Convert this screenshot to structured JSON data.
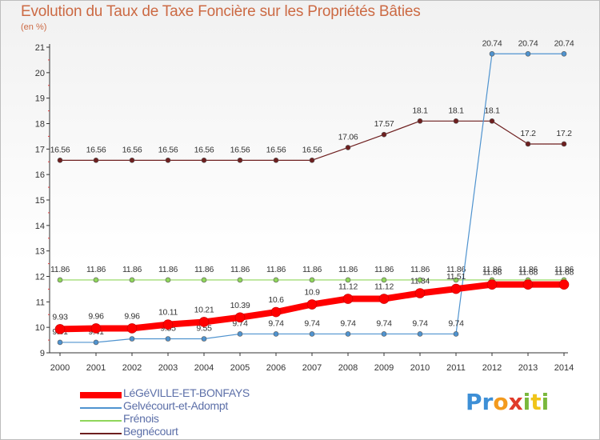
{
  "header": {
    "title": "Evolution du Taux de Taxe Foncière sur les Propriétés Bâties",
    "unit": "(en %)"
  },
  "brand": {
    "letters": [
      "P",
      "r",
      "o",
      "x",
      "i",
      "t",
      "i"
    ],
    "colors": [
      "#3d8fd6",
      "#3d8fd6",
      "#f39a1e",
      "#e03a2a",
      "#7ab83c",
      "#f0c419",
      "#7ab83c"
    ]
  },
  "chart_data": {
    "type": "line",
    "title": "Evolution du Taux de Taxe Foncière sur les Propriétés Bâties",
    "ylabel": "(en %)",
    "xlabel": "",
    "ylim": [
      9,
      21
    ],
    "yticks": [
      "9",
      "10",
      "11",
      "12",
      "13",
      "14",
      "15",
      "16",
      "17",
      "18",
      "19",
      "20",
      "21"
    ],
    "categories": [
      "2000",
      "2001",
      "2002",
      "2003",
      "2004",
      "2005",
      "2006",
      "2007",
      "2008",
      "2009",
      "2010",
      "2011",
      "2012",
      "2013",
      "2014"
    ],
    "series": [
      {
        "name": "Begnécourt",
        "color": "#6e1f1f",
        "values": [
          16.56,
          16.56,
          16.56,
          16.56,
          16.56,
          16.56,
          16.56,
          16.56,
          17.06,
          17.57,
          18.1,
          18.1,
          18.1,
          17.2,
          17.2
        ],
        "labels": [
          "16.56",
          "16.56",
          "16.56",
          "16.56",
          "16.56",
          "16.56",
          "16.56",
          "16.56",
          "17.06",
          "17.57",
          "18.1",
          "18.1",
          "18.1",
          "17.2",
          "17.2"
        ]
      },
      {
        "name": "Frénois",
        "color": "#8fd65a",
        "values": [
          11.86,
          11.86,
          11.86,
          11.86,
          11.86,
          11.86,
          11.86,
          11.86,
          11.86,
          11.86,
          11.86,
          11.86,
          11.86,
          11.86,
          11.86
        ],
        "labels": [
          "11.86",
          "11.86",
          "11.86",
          "11.86",
          "11.86",
          "11.86",
          "11.86",
          "11.86",
          "11.86",
          "11.86",
          "11.86",
          "11.86",
          "11.86",
          "11.86",
          "11.86"
        ]
      },
      {
        "name": "Gelvécourt-et-Adompt",
        "color": "#4f93cf",
        "values": [
          9.41,
          9.41,
          9.55,
          9.55,
          9.55,
          9.74,
          9.74,
          9.74,
          9.74,
          9.74,
          9.74,
          9.74,
          20.74,
          20.74,
          20.74
        ],
        "labels": [
          "9.41",
          "9.41",
          "9.55",
          "9.55",
          "9.55",
          "9.74",
          "9.74",
          "9.74",
          "9.74",
          "9.74",
          "9.74",
          "9.74",
          "20.74",
          "20.74",
          "20.74"
        ]
      },
      {
        "name": "LéGéVILLE-ET-BONFAYS",
        "color": "#ff0000",
        "values": [
          9.93,
          9.96,
          9.96,
          10.11,
          10.21,
          10.39,
          10.6,
          10.9,
          11.12,
          11.12,
          11.34,
          11.51,
          11.68,
          11.68,
          11.68
        ],
        "labels": [
          "9.93",
          "9.96",
          "9.96",
          "10.11",
          "10.21",
          "10.39",
          "10.6",
          "10.9",
          "11.12",
          "11.12",
          "11.34",
          "11.51",
          "11.68",
          "11.68",
          "11.68"
        ]
      }
    ]
  },
  "legend": {
    "items": [
      {
        "label": "LéGéVILLE-ET-BONFAYS",
        "color": "#ff0000"
      },
      {
        "label": "Gelvécourt-et-Adompt",
        "color": "#4f93cf"
      },
      {
        "label": "Frénois",
        "color": "#8fd65a"
      },
      {
        "label": "Begnécourt",
        "color": "#6e1f1f"
      }
    ]
  }
}
